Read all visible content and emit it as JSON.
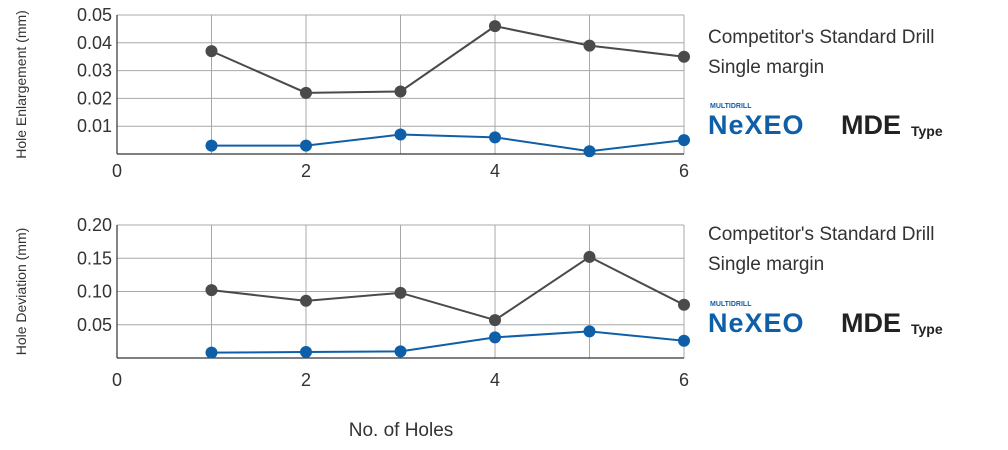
{
  "chart_data": [
    {
      "type": "line",
      "ylabel": "Hole Enlargement (mm)",
      "xlabel": "",
      "xlim": [
        0,
        6
      ],
      "ylim": [
        0,
        0.05
      ],
      "x_ticks": [
        "0",
        "2",
        "4",
        "6"
      ],
      "y_ticks": [
        "0.01",
        "0.02",
        "0.03",
        "0.04",
        "0.05"
      ],
      "y_tick_values": [
        0.01,
        0.02,
        0.03,
        0.04,
        0.05
      ],
      "x": [
        1,
        2,
        3,
        4,
        5,
        6
      ],
      "series": [
        {
          "name": "Competitor's Standard Drill Single margin",
          "name_line1": "Competitor's Standard Drill",
          "name_line2": "Single margin",
          "color": "#4a4a4a",
          "values": [
            0.037,
            0.022,
            0.0225,
            0.046,
            0.039,
            0.035
          ]
        },
        {
          "name": "NeXEO MDE Type",
          "color": "#0f5fa8",
          "values": [
            0.003,
            0.003,
            0.007,
            0.006,
            0.001,
            0.005
          ]
        }
      ],
      "grid": true
    },
    {
      "type": "line",
      "ylabel": "Hole Deviation (mm)",
      "xlabel": "",
      "xlim": [
        0,
        6
      ],
      "ylim": [
        0,
        0.2
      ],
      "x_ticks": [
        "0",
        "2",
        "4",
        "6"
      ],
      "y_ticks": [
        "0.05",
        "0.10",
        "0.15",
        "0.20"
      ],
      "y_tick_values": [
        0.05,
        0.1,
        0.15,
        0.2
      ],
      "x": [
        1,
        2,
        3,
        4,
        5,
        6
      ],
      "series": [
        {
          "name": "Competitor's Standard Drill Single margin",
          "name_line1": "Competitor's Standard Drill",
          "name_line2": "Single margin",
          "color": "#4a4a4a",
          "values": [
            0.102,
            0.086,
            0.098,
            0.057,
            0.152,
            0.08
          ]
        },
        {
          "name": "NeXEO MDE Type",
          "color": "#0f5fa8",
          "values": [
            0.008,
            0.009,
            0.01,
            0.031,
            0.04,
            0.026
          ]
        }
      ],
      "grid": true
    }
  ],
  "shared_xlabel": "No. of Holes",
  "brand": {
    "super": "MULTIDRILL",
    "logo": "NeXEO",
    "model": "MDE",
    "suffix": "Type",
    "color": "#0f5fa8"
  }
}
